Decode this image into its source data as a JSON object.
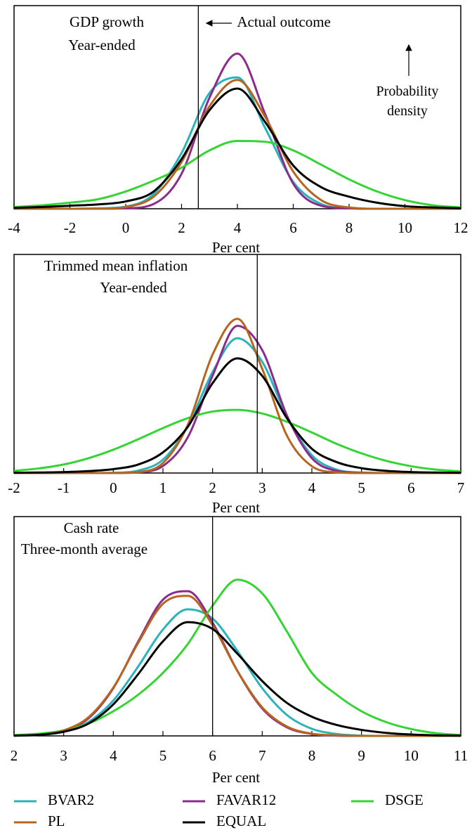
{
  "chart_data": [
    {
      "type": "line",
      "title": "GDP growth",
      "subtitle": "Year-ended",
      "xlabel": "Per cent",
      "ylabel": "Probability density",
      "outcome": {
        "value": 2.6,
        "label": "Actual outcome"
      },
      "xlim": [
        -4,
        12
      ],
      "xticks": [
        -4,
        -2,
        0,
        2,
        4,
        6,
        8,
        10,
        12
      ],
      "ylim": [
        0,
        0.47
      ],
      "x": [
        -4,
        -3,
        -2,
        -1,
        0,
        1,
        2,
        3,
        4,
        5,
        6,
        7,
        8,
        9,
        10,
        11,
        12
      ],
      "series": [
        {
          "name": "BVAR2",
          "color": "#2bb3bb",
          "values": [
            0,
            0,
            0,
            0.001,
            0.005,
            0.034,
            0.129,
            0.268,
            0.304,
            0.186,
            0.062,
            0.011,
            0.001,
            0,
            0,
            0,
            0
          ]
        },
        {
          "name": "FAVAR12",
          "color": "#8c2b8e",
          "values": [
            0,
            0,
            0,
            0,
            0.001,
            0.011,
            0.081,
            0.257,
            0.359,
            0.218,
            0.058,
            0.007,
            0.001,
            0,
            0,
            0,
            0
          ]
        },
        {
          "name": "DSGE",
          "color": "#35d435",
          "values": [
            0.004,
            0.008,
            0.014,
            0.022,
            0.04,
            0.065,
            0.095,
            0.135,
            0.157,
            0.155,
            0.135,
            0.102,
            0.068,
            0.04,
            0.02,
            0.008,
            0.003
          ]
        },
        {
          "name": "PL",
          "color": "#b5651d",
          "values": [
            0,
            0,
            0,
            0,
            0.004,
            0.028,
            0.108,
            0.237,
            0.298,
            0.212,
            0.086,
            0.02,
            0.003,
            0,
            0,
            0,
            0
          ]
        },
        {
          "name": "EQUAL",
          "color": "#000000",
          "values": [
            0.002,
            0.004,
            0.007,
            0.01,
            0.017,
            0.04,
            0.115,
            0.228,
            0.278,
            0.2,
            0.1,
            0.05,
            0.028,
            0.014,
            0.006,
            0.003,
            0.001
          ]
        }
      ]
    },
    {
      "type": "line",
      "title": "Trimmed mean inflation",
      "subtitle": "Year-ended",
      "xlabel": "Per cent",
      "outcome": {
        "value": 2.9
      },
      "xlim": [
        -2,
        7
      ],
      "xticks": [
        -2,
        -1,
        0,
        1,
        2,
        3,
        4,
        5,
        6,
        7
      ],
      "ylim": [
        0,
        0.9
      ],
      "x": [
        -2,
        -1.5,
        -1,
        -0.5,
        0,
        0.5,
        1,
        1.5,
        2,
        2.5,
        3,
        3.5,
        4,
        4.5,
        5,
        5.5,
        6,
        6.5,
        7
      ],
      "series": [
        {
          "color": "#2bb3bb",
          "values": [
            0,
            0,
            0,
            0,
            0.001,
            0.01,
            0.055,
            0.192,
            0.416,
            0.555,
            0.458,
            0.232,
            0.073,
            0.014,
            0.002,
            0,
            0,
            0,
            0
          ]
        },
        {
          "color": "#8c2b8e",
          "values": [
            0,
            0,
            0,
            0,
            0,
            0.003,
            0.029,
            0.147,
            0.401,
            0.606,
            0.506,
            0.236,
            0.061,
            0.009,
            0.001,
            0,
            0,
            0,
            0
          ]
        },
        {
          "color": "#35d435",
          "values": [
            0.009,
            0.019,
            0.035,
            0.061,
            0.096,
            0.139,
            0.185,
            0.226,
            0.253,
            0.26,
            0.245,
            0.211,
            0.167,
            0.12,
            0.081,
            0.05,
            0.028,
            0.014,
            0.007
          ]
        },
        {
          "color": "#b5651d",
          "values": [
            0,
            0,
            0,
            0,
            0,
            0.004,
            0.041,
            0.198,
            0.488,
            0.635,
            0.429,
            0.153,
            0.028,
            0.003,
            0,
            0,
            0,
            0,
            0
          ]
        },
        {
          "color": "#000000",
          "values": [
            0.001,
            0.002,
            0.004,
            0.008,
            0.016,
            0.035,
            0.085,
            0.19,
            0.37,
            0.472,
            0.4,
            0.225,
            0.1,
            0.045,
            0.02,
            0.009,
            0.004,
            0.002,
            0.001
          ]
        }
      ]
    },
    {
      "type": "line",
      "title": "Cash rate",
      "subtitle": "Three-month average",
      "xlabel": "Per cent",
      "outcome": {
        "value": 6
      },
      "xlim": [
        2,
        11
      ],
      "xticks": [
        2,
        3,
        4,
        5,
        6,
        7,
        8,
        9,
        10,
        11
      ],
      "ylim": [
        0,
        0.8
      ],
      "x": [
        2,
        2.5,
        3,
        3.5,
        4,
        4.5,
        5,
        5.5,
        6,
        6.5,
        7,
        7.5,
        8,
        8.5,
        9,
        9.5,
        10,
        10.5,
        11
      ],
      "series": [
        {
          "color": "#2bb3bb",
          "values": [
            0.001,
            0.004,
            0.016,
            0.051,
            0.129,
            0.253,
            0.388,
            0.462,
            0.428,
            0.31,
            0.174,
            0.076,
            0.026,
            0.007,
            0.001,
            0,
            0,
            0,
            0
          ]
        },
        {
          "color": "#8c2b8e",
          "values": [
            0.001,
            0.004,
            0.018,
            0.064,
            0.174,
            0.344,
            0.497,
            0.528,
            0.413,
            0.237,
            0.1,
            0.031,
            0.007,
            0.001,
            0,
            0,
            0,
            0,
            0
          ]
        },
        {
          "color": "#35d435",
          "values": [
            0.003,
            0.008,
            0.02,
            0.045,
            0.09,
            0.15,
            0.23,
            0.335,
            0.475,
            0.57,
            0.52,
            0.38,
            0.23,
            0.15,
            0.09,
            0.05,
            0.025,
            0.01,
            0.003
          ]
        },
        {
          "color": "#b5651d",
          "values": [
            0.001,
            0.004,
            0.02,
            0.068,
            0.176,
            0.339,
            0.482,
            0.511,
            0.404,
            0.237,
            0.104,
            0.034,
            0.008,
            0.002,
            0,
            0,
            0,
            0,
            0
          ]
        },
        {
          "color": "#000000",
          "values": [
            0.001,
            0.004,
            0.015,
            0.045,
            0.115,
            0.225,
            0.345,
            0.415,
            0.39,
            0.3,
            0.2,
            0.12,
            0.07,
            0.04,
            0.022,
            0.011,
            0.005,
            0.002,
            0.001
          ]
        }
      ]
    }
  ]
}
